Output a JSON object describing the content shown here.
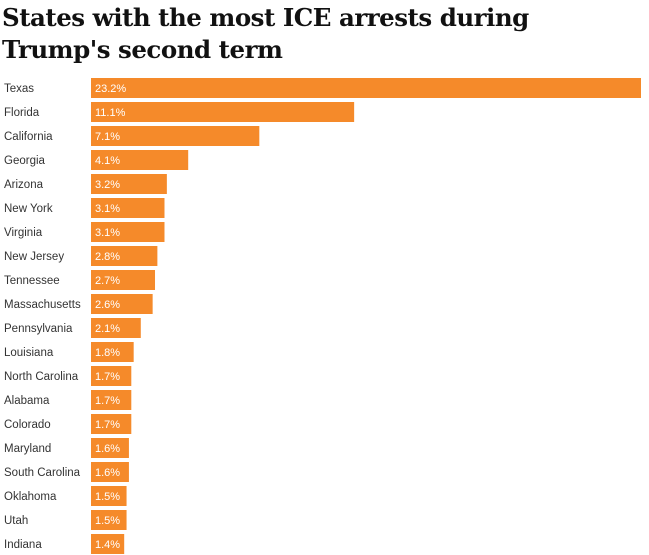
{
  "chart_data": {
    "type": "bar",
    "orientation": "horizontal",
    "title": "States with the most ICE arrests during Trump's second term",
    "categories": [
      "Texas",
      "Florida",
      "California",
      "Georgia",
      "Arizona",
      "New York",
      "Virginia",
      "New Jersey",
      "Tennessee",
      "Massachusetts",
      "Pennsylvania",
      "Louisiana",
      "North Carolina",
      "Alabama",
      "Colorado",
      "Maryland",
      "South Carolina",
      "Oklahoma",
      "Utah",
      "Indiana"
    ],
    "values": [
      23.2,
      11.1,
      7.1,
      4.1,
      3.2,
      3.1,
      3.1,
      2.8,
      2.7,
      2.6,
      2.1,
      1.8,
      1.7,
      1.7,
      1.7,
      1.6,
      1.6,
      1.5,
      1.5,
      1.4
    ],
    "value_labels": [
      "23.2%",
      "11.1%",
      "7.1%",
      "4.1%",
      "3.2%",
      "3.1%",
      "3.1%",
      "2.8%",
      "2.7%",
      "2.6%",
      "2.1%",
      "1.8%",
      "1.7%",
      "1.7%",
      "1.7%",
      "1.6%",
      "1.6%",
      "1.5%",
      "1.5%",
      "1.4%"
    ],
    "unit": "%",
    "xlim": [
      0,
      23.2
    ],
    "grid": false,
    "bar_color": "#f58a2a"
  }
}
